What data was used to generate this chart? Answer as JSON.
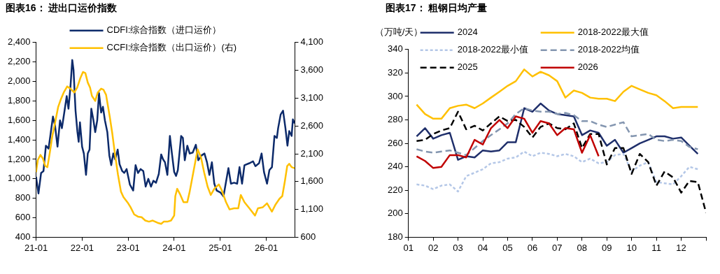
{
  "chart_data": [
    {
      "type": "line",
      "title": "图表16： 进出口运价指数",
      "legend": "top",
      "xlim": [
        "2021-01-01",
        "2026-08-15"
      ],
      "xticks": [
        {
          "value": "2021-01",
          "label": "21-01"
        },
        {
          "value": "2022-01",
          "label": "22-01"
        },
        {
          "value": "2023-01",
          "label": "23-01"
        },
        {
          "value": "2024-01",
          "label": "24-01"
        },
        {
          "value": "2025-01",
          "label": "25-01"
        },
        {
          "value": "2026-01",
          "label": "26-01"
        }
      ],
      "ylim": [
        400,
        2400
      ],
      "yticks": [
        400,
        600,
        800,
        {
          "value": 1000,
          "label": "1,000"
        },
        {
          "value": 1200,
          "label": "1,200"
        },
        {
          "value": 1400,
          "label": "1,400"
        },
        {
          "value": 1600,
          "label": "1,600"
        },
        {
          "value": 1800,
          "label": "1,800"
        },
        {
          "value": 2000,
          "label": "2,000"
        },
        {
          "value": 2200,
          "label": "2,200"
        },
        {
          "value": 2400,
          "label": "2,400"
        }
      ],
      "y2lim": [
        600,
        4100
      ],
      "y2ticks": [
        600,
        {
          "value": 1100,
          "label": "1,100"
        },
        {
          "value": 1600,
          "label": "1,600"
        },
        {
          "value": 2100,
          "label": "2,100"
        },
        {
          "value": 2600,
          "label": "2,600"
        },
        {
          "value": 3100,
          "label": "3,100"
        },
        {
          "value": 3600,
          "label": "3,600"
        },
        {
          "value": 4100,
          "label": "4,100"
        }
      ],
      "series": [
        {
          "name": "CDFI:综合指数（进口运价）",
          "color": "#0c2a6a",
          "x": [
            "2021-01-01",
            "2021-01-20",
            "2021-02-10",
            "2021-03-01",
            "2021-03-20",
            "2021-04-10",
            "2021-04-25",
            "2021-05-15",
            "2021-06-01",
            "2021-06-20",
            "2021-07-10",
            "2021-07-25",
            "2021-08-15",
            "2021-09-01",
            "2021-09-15",
            "2021-10-01",
            "2021-10-15",
            "2021-10-25",
            "2021-11-10",
            "2021-11-25",
            "2021-12-05",
            "2021-12-15",
            "2022-01-01",
            "2022-01-15",
            "2022-02-01",
            "2022-02-15",
            "2022-03-01",
            "2022-03-15",
            "2022-04-01",
            "2022-04-15",
            "2022-05-01",
            "2022-05-15",
            "2022-06-01",
            "2022-06-15",
            "2022-07-01",
            "2022-07-20",
            "2022-08-05",
            "2022-08-20",
            "2022-09-05",
            "2022-09-20",
            "2022-10-10",
            "2022-10-25",
            "2022-11-15",
            "2022-12-01",
            "2022-12-20",
            "2023-01-15",
            "2023-02-10",
            "2023-03-01",
            "2023-03-20",
            "2023-04-10",
            "2023-05-01",
            "2023-05-20",
            "2023-06-10",
            "2023-07-01",
            "2023-07-20",
            "2023-08-10",
            "2023-09-01",
            "2023-09-20",
            "2023-10-05",
            "2023-10-20",
            "2023-11-08",
            "2023-11-28",
            "2023-12-13",
            "2024-01-01",
            "2024-01-16",
            "2024-01-30",
            "2024-02-25",
            "2024-03-10",
            "2024-03-25",
            "2024-04-14",
            "2024-05-03",
            "2024-05-27",
            "2024-06-21",
            "2024-07-10",
            "2024-08-05",
            "2024-08-28",
            "2024-09-17",
            "2024-10-06",
            "2024-10-26",
            "2024-11-14",
            "2024-12-03",
            "2025-01-01",
            "2025-01-26",
            "2025-02-15",
            "2025-03-06",
            "2025-03-26",
            "2025-04-20",
            "2025-05-14",
            "2025-06-02",
            "2025-06-22",
            "2025-07-11",
            "2025-08-19",
            "2025-09-17",
            "2025-10-06",
            "2025-11-04",
            "2025-11-24",
            "2025-12-13",
            "2026-01-06",
            "2026-01-25",
            "2026-02-14",
            "2026-03-06",
            "2026-03-25",
            "2026-04-04",
            "2026-04-24",
            "2026-05-13",
            "2026-06-01",
            "2026-06-17",
            "2026-07-01",
            "2026-07-20",
            "2026-07-30",
            "2026-08-13"
          ],
          "values": [
            1020,
            850,
            1060,
            1080,
            1340,
            1310,
            1450,
            1640,
            1540,
            1330,
            1600,
            1520,
            1700,
            1850,
            1720,
            1950,
            2220,
            2120,
            1700,
            1480,
            1380,
            1580,
            1330,
            1260,
            1040,
            1260,
            1300,
            1720,
            1600,
            1480,
            1600,
            1880,
            1680,
            1740,
            1600,
            1480,
            1240,
            1140,
            1260,
            1200,
            1300,
            1150,
            1080,
            1060,
            1100,
            940,
            880,
            1140,
            1060,
            1100,
            1080,
            920,
            1000,
            920,
            980,
            960,
            1050,
            1250,
            1200,
            1170,
            1040,
            1440,
            1270,
            1070,
            1030,
            1090,
            1440,
            1420,
            1190,
            1340,
            1260,
            1270,
            1350,
            1190,
            1240,
            1260,
            1170,
            1040,
            1170,
            950,
            880,
            860,
            820,
            970,
            1110,
            950,
            960,
            950,
            1120,
            950,
            1140,
            1160,
            1180,
            1130,
            1160,
            1260,
            1070,
            950,
            1090,
            1120,
            1440,
            1420,
            1520,
            1660,
            1700,
            1520,
            1340,
            1490,
            1440,
            1610,
            1570
          ]
        },
        {
          "name": "CCFI:综合指数（出口运价）(右)",
          "color": "#ffc000",
          "axis": "y2",
          "x": [
            "2021-01-01",
            "2021-01-15",
            "2021-02-05",
            "2021-02-25",
            "2021-03-15",
            "2021-04-01",
            "2021-04-20",
            "2021-05-10",
            "2021-05-30",
            "2021-06-25",
            "2021-07-15",
            "2021-08-08",
            "2021-09-05",
            "2021-10-01",
            "2021-10-31",
            "2021-11-23",
            "2021-12-18",
            "2022-01-08",
            "2022-01-27",
            "2022-02-15",
            "2022-03-05",
            "2022-03-20",
            "2022-04-15",
            "2022-05-05",
            "2022-06-01",
            "2022-06-20",
            "2022-07-10",
            "2022-08-08",
            "2022-08-28",
            "2022-09-17",
            "2022-10-12",
            "2022-11-05",
            "2022-11-25",
            "2023-01-01",
            "2023-01-20",
            "2023-02-18",
            "2023-03-20",
            "2023-04-18",
            "2023-05-17",
            "2023-06-15",
            "2023-07-15",
            "2023-08-22",
            "2023-09-20",
            "2023-10-10",
            "2023-11-08",
            "2023-12-07",
            "2024-01-01",
            "2024-01-10",
            "2024-01-25",
            "2024-02-15",
            "2024-03-15",
            "2024-04-14",
            "2024-05-03",
            "2024-06-01",
            "2024-07-05",
            "2024-08-01",
            "2024-08-25",
            "2024-09-22",
            "2024-10-17",
            "2024-11-14",
            "2024-12-20",
            "2025-01-11",
            "2025-02-15",
            "2025-03-15",
            "2025-04-20",
            "2025-05-23",
            "2025-06-12",
            "2025-07-11",
            "2025-08-19",
            "2025-10-03",
            "2025-10-26",
            "2025-12-04",
            "2026-01-06",
            "2026-02-14",
            "2026-03-15",
            "2026-04-14",
            "2026-05-07",
            "2026-05-27",
            "2026-06-15",
            "2026-07-01",
            "2026-07-20",
            "2026-08-13"
          ],
          "values": [
            1770,
            1990,
            2080,
            2010,
            1880,
            1860,
            2120,
            2420,
            2640,
            2940,
            3070,
            3200,
            3310,
            3270,
            3200,
            3290,
            3460,
            3570,
            3550,
            3380,
            3290,
            3140,
            3050,
            3200,
            3270,
            3250,
            3160,
            2770,
            2470,
            2120,
            1730,
            1420,
            1320,
            1210,
            1140,
            1010,
            970,
            960,
            900,
            880,
            900,
            860,
            840,
            880,
            880,
            900,
            990,
            1340,
            1470,
            1380,
            1230,
            1230,
            1420,
            1770,
            2180,
            2030,
            1770,
            1510,
            1360,
            1470,
            1550,
            1450,
            1230,
            1100,
            1120,
            1120,
            1360,
            1230,
            1120,
            990,
            1120,
            1140,
            1210,
            1060,
            1190,
            1290,
            1340,
            1600,
            1880,
            1920,
            1860,
            1840
          ]
        }
      ]
    },
    {
      "type": "line",
      "title": "图表17： 粗钢日均产量",
      "ylabel": "（万吨/天）",
      "legend": "top",
      "x": [
        1.33,
        1.67,
        2,
        2.33,
        2.67,
        3,
        3.33,
        3.67,
        4,
        4.33,
        4.67,
        5,
        5.33,
        5.67,
        6,
        6.33,
        6.67,
        7,
        7.33,
        7.67,
        8,
        8.33,
        8.67,
        9,
        9.33,
        9.67,
        10,
        10.33,
        10.67,
        11,
        11.33,
        11.67,
        12,
        12.33,
        12.67,
        13
      ],
      "xlim": [
        1,
        13
      ],
      "xticks": [
        {
          "value": 1,
          "label": "01"
        },
        {
          "value": 2,
          "label": "02"
        },
        {
          "value": 3,
          "label": "03"
        },
        {
          "value": 4,
          "label": "04"
        },
        {
          "value": 5,
          "label": "05"
        },
        {
          "value": 6,
          "label": "06"
        },
        {
          "value": 7,
          "label": "07"
        },
        {
          "value": 8,
          "label": "08"
        },
        {
          "value": 9,
          "label": "09"
        },
        {
          "value": 10,
          "label": "10"
        },
        {
          "value": 11,
          "label": "11"
        },
        {
          "value": 12,
          "label": "12"
        },
        {
          "value": 13,
          "label": null
        }
      ],
      "ylim": [
        180,
        340
      ],
      "yticks": [
        180,
        200,
        220,
        240,
        260,
        280,
        300,
        320,
        340
      ],
      "series": [
        {
          "name": "2024",
          "color": "#1f2f6b",
          "values": [
            266,
            273,
            264,
            267,
            269,
            246,
            249,
            248,
            254,
            253,
            254,
            261,
            261,
            290,
            287,
            294,
            288,
            285,
            284,
            283,
            267,
            271,
            269,
            258,
            263,
            252,
            256,
            260,
            263,
            266,
            266,
            264,
            265,
            258,
            251,
            null
          ]
        },
        {
          "name": "2018-2022最大值",
          "color": "#ffc000",
          "values": [
            293,
            285,
            281,
            281,
            290,
            292,
            293,
            290,
            294,
            299,
            304,
            309,
            313,
            323,
            317,
            321,
            318,
            313,
            299,
            305,
            303,
            299,
            298,
            298,
            296,
            304,
            309,
            306,
            303,
            301,
            296,
            290,
            291,
            291,
            291,
            null
          ]
        },
        {
          "name": "2018-2022最小值",
          "color": "#b4c7e7",
          "line_style": "dotted",
          "values": [
            225,
            224,
            221,
            224,
            225,
            219,
            232,
            235,
            238,
            243,
            244,
            247,
            248,
            253,
            249,
            252,
            251,
            249,
            251,
            249,
            244,
            247,
            243,
            244,
            250,
            251,
            236,
            241,
            244,
            227,
            226,
            225,
            232,
            240,
            238,
            null
          ]
        },
        {
          "name": "2018-2022均值",
          "color": "#8496b0",
          "line_style": "dashed",
          "values": [
            255,
            253,
            252,
            253,
            254,
            252,
            250,
            256,
            262,
            267,
            272,
            277,
            285,
            290,
            288,
            287,
            287,
            285,
            286,
            284,
            279,
            279,
            276,
            274,
            276,
            278,
            266,
            267,
            268,
            263,
            262,
            263,
            262,
            257,
            255,
            null
          ]
        },
        {
          "name": "2025",
          "color": "#000000",
          "line_style": "dashed",
          "values": [
            262,
            263,
            268,
            271,
            273,
            287,
            272,
            275,
            271,
            277,
            283,
            279,
            280,
            274,
            265,
            274,
            277,
            273,
            272,
            277,
            256,
            268,
            268,
            242,
            256,
            256,
            234,
            251,
            244,
            224,
            236,
            231,
            218,
            228,
            227,
            201
          ]
        },
        {
          "name": "2026",
          "color": "#c00000",
          "values": [
            249,
            245,
            239,
            240,
            250,
            250,
            248,
            263,
            259,
            273,
            280,
            273,
            283,
            281,
            269,
            279,
            277,
            267,
            273,
            272,
            252,
            267,
            249,
            null,
            null,
            null,
            null,
            null,
            null,
            null,
            null,
            null,
            null,
            null,
            null,
            null
          ]
        }
      ]
    }
  ]
}
